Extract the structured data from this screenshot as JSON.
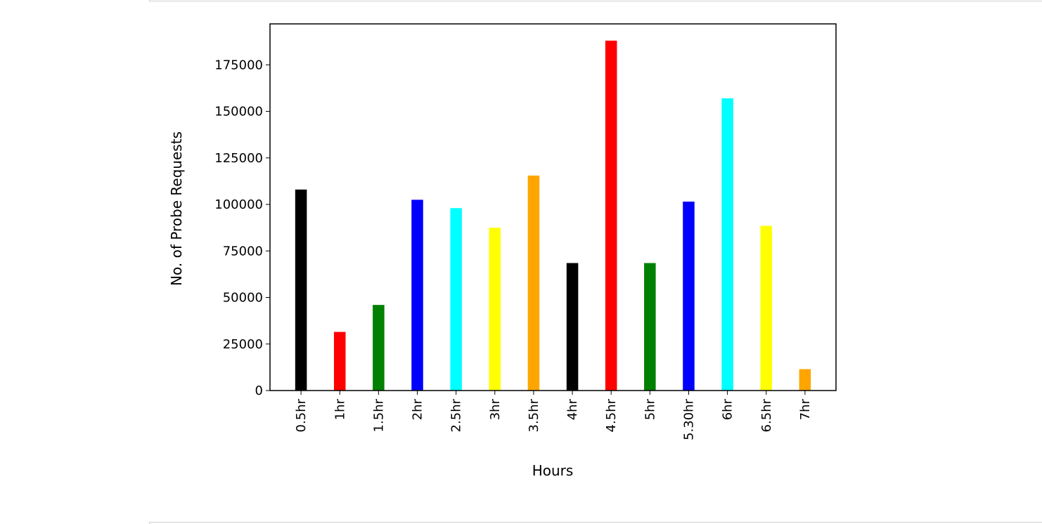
{
  "chart_data": {
    "type": "bar",
    "title": "",
    "xlabel": "Hours",
    "ylabel": "No. of Probe Requests",
    "categories": [
      "0.5hr",
      "1hr",
      "1.5hr",
      "2hr",
      "2.5hr",
      "3hr",
      "3.5hr",
      "4hr",
      "4.5hr",
      "5hr",
      "5.30hr",
      "6hr",
      "6.5hr",
      "7hr"
    ],
    "values": [
      108000,
      31500,
      46000,
      102500,
      98000,
      87500,
      115500,
      68500,
      188000,
      68500,
      101500,
      157000,
      88500,
      11500
    ],
    "colors": [
      "#000000",
      "#ff0000",
      "#008000",
      "#0000ff",
      "#00ffff",
      "#ffff00",
      "#ffa500",
      "#000000",
      "#ff0000",
      "#008000",
      "#0000ff",
      "#00ffff",
      "#ffff00",
      "#ffa500"
    ],
    "yticks": [
      0,
      25000,
      50000,
      75000,
      100000,
      125000,
      150000,
      175000
    ],
    "ylim": [
      0,
      197000
    ],
    "grid": false,
    "legend": false
  }
}
